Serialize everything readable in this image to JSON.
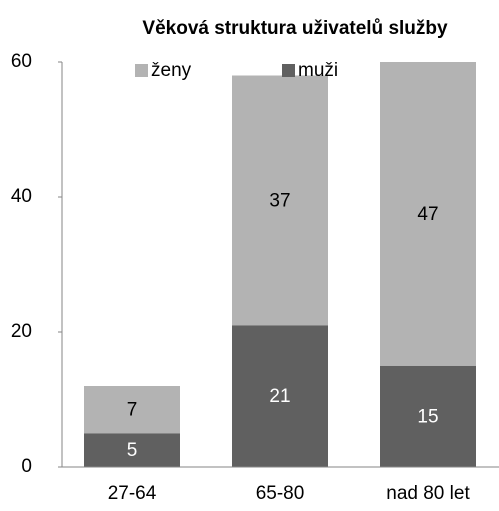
{
  "chart_data": {
    "type": "stacked_bar",
    "title": "Věková struktura uživatelů služby",
    "categories": [
      "27-64",
      "65-80",
      "nad 80 let"
    ],
    "series": [
      {
        "name": "ženy",
        "color": "#b3b3b3",
        "values": [
          7,
          37,
          47
        ]
      },
      {
        "name": "muži",
        "color": "#606060",
        "values": [
          5,
          21,
          15
        ]
      }
    ],
    "ylim": [
      0,
      60
    ],
    "yticks": [
      0,
      20,
      40,
      60
    ],
    "grid": false,
    "legend": "top"
  }
}
